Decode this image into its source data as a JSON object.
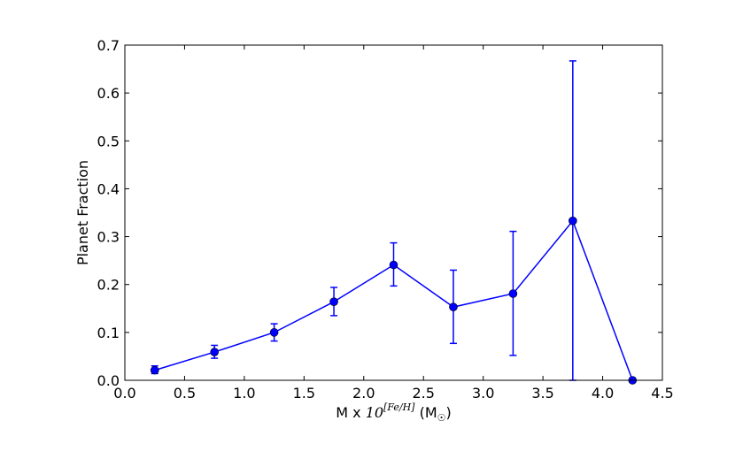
{
  "chart_data": {
    "type": "line",
    "xlabel": {
      "prefix": "M x ",
      "base": "10",
      "exponent": "[Fe/H]",
      "suffix_open": " (M",
      "suffix_sub": "☉",
      "suffix_close": ")"
    },
    "ylabel": "Planet Fraction",
    "xlim": [
      0.0,
      4.5
    ],
    "ylim": [
      0.0,
      0.7
    ],
    "xticks": [
      "0.0",
      "0.5",
      "1.0",
      "1.5",
      "2.0",
      "2.5",
      "3.0",
      "3.5",
      "4.0",
      "4.5"
    ],
    "yticks": [
      "0.0",
      "0.1",
      "0.2",
      "0.3",
      "0.4",
      "0.5",
      "0.6",
      "0.7"
    ],
    "grid": false,
    "series_color": "#0000ff",
    "series": [
      {
        "x": [
          0.25,
          0.75,
          1.25,
          1.75,
          2.25,
          2.75,
          3.25,
          3.75,
          4.25
        ],
        "y": [
          0.021,
          0.059,
          0.1,
          0.164,
          0.241,
          0.153,
          0.181,
          0.333,
          0.0
        ],
        "yerr_low": [
          0.014,
          0.046,
          0.082,
          0.135,
          0.197,
          0.077,
          0.052,
          0.0,
          0.0
        ],
        "yerr_high": [
          0.03,
          0.073,
          0.118,
          0.194,
          0.287,
          0.23,
          0.311,
          0.667,
          0.0
        ]
      }
    ]
  }
}
